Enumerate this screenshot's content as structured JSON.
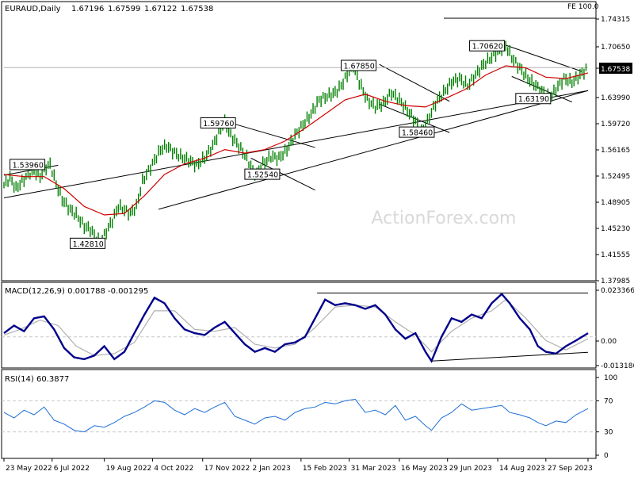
{
  "chart_data": {
    "type": "line",
    "symbol": "EURAUD,Daily",
    "ohlc": [
      "1.67196",
      "1.67599",
      "1.67122",
      "1.67538"
    ],
    "watermark": "ActionForex.com",
    "price_panel": {
      "ylim": [
        1.3798,
        1.755
      ],
      "y_ticks": [
        "1.74315",
        "1.70650",
        "1.67538",
        "1.63990",
        "1.59720",
        "1.56165",
        "1.52495",
        "1.48905",
        "1.45230",
        "1.41555",
        "1.37985"
      ],
      "current_price": "1.67538",
      "fib_label": "FE 100.0",
      "fib_level": 1.745,
      "price_series": [
        [
          0,
          1.51
        ],
        [
          3,
          1.52
        ],
        [
          6,
          1.505
        ],
        [
          9,
          1.515
        ],
        [
          12,
          1.525
        ],
        [
          15,
          1.53
        ],
        [
          18,
          1.522
        ],
        [
          21,
          1.535
        ],
        [
          23,
          1.539
        ],
        [
          26,
          1.512
        ],
        [
          29,
          1.49
        ],
        [
          33,
          1.475
        ],
        [
          36,
          1.468
        ],
        [
          40,
          1.452
        ],
        [
          43,
          1.448
        ],
        [
          46,
          1.435
        ],
        [
          48,
          1.428
        ],
        [
          51,
          1.445
        ],
        [
          54,
          1.46
        ],
        [
          57,
          1.48
        ],
        [
          60,
          1.475
        ],
        [
          63,
          1.47
        ],
        [
          66,
          1.48
        ],
        [
          69,
          1.515
        ],
        [
          72,
          1.53
        ],
        [
          75,
          1.545
        ],
        [
          78,
          1.56
        ],
        [
          81,
          1.565
        ],
        [
          84,
          1.558
        ],
        [
          88,
          1.55
        ],
        [
          92,
          1.545
        ],
        [
          96,
          1.538
        ],
        [
          100,
          1.548
        ],
        [
          104,
          1.565
        ],
        [
          108,
          1.59
        ],
        [
          110,
          1.5976
        ],
        [
          113,
          1.58
        ],
        [
          117,
          1.565
        ],
        [
          121,
          1.548
        ],
        [
          124,
          1.53
        ],
        [
          126,
          1.5254
        ],
        [
          129,
          1.54
        ],
        [
          133,
          1.55
        ],
        [
          137,
          1.548
        ],
        [
          141,
          1.56
        ],
        [
          145,
          1.58
        ],
        [
          149,
          1.595
        ],
        [
          153,
          1.61
        ],
        [
          157,
          1.63
        ],
        [
          161,
          1.635
        ],
        [
          165,
          1.64
        ],
        [
          168,
          1.65
        ],
        [
          171,
          1.665
        ],
        [
          174,
          1.6785
        ],
        [
          177,
          1.655
        ],
        [
          181,
          1.63
        ],
        [
          185,
          1.62
        ],
        [
          189,
          1.625
        ],
        [
          193,
          1.64
        ],
        [
          197,
          1.63
        ],
        [
          201,
          1.615
        ],
        [
          205,
          1.6
        ],
        [
          208,
          1.5846
        ],
        [
          211,
          1.6
        ],
        [
          215,
          1.625
        ],
        [
          219,
          1.64
        ],
        [
          223,
          1.655
        ],
        [
          227,
          1.66
        ],
        [
          231,
          1.65
        ],
        [
          235,
          1.665
        ],
        [
          239,
          1.68
        ],
        [
          243,
          1.69
        ],
        [
          247,
          1.7
        ],
        [
          250,
          1.7062
        ],
        [
          253,
          1.69
        ],
        [
          257,
          1.675
        ],
        [
          261,
          1.66
        ],
        [
          265,
          1.65
        ],
        [
          269,
          1.64
        ],
        [
          272,
          1.6319
        ],
        [
          275,
          1.645
        ],
        [
          279,
          1.66
        ],
        [
          283,
          1.655
        ],
        [
          287,
          1.665
        ],
        [
          291,
          1.675
        ]
      ],
      "ma_series": [
        [
          0,
          1.525
        ],
        [
          10,
          1.522
        ],
        [
          20,
          1.522
        ],
        [
          30,
          1.505
        ],
        [
          40,
          1.48
        ],
        [
          50,
          1.468
        ],
        [
          60,
          1.47
        ],
        [
          70,
          1.495
        ],
        [
          80,
          1.525
        ],
        [
          90,
          1.54
        ],
        [
          100,
          1.548
        ],
        [
          110,
          1.56
        ],
        [
          120,
          1.555
        ],
        [
          130,
          1.56
        ],
        [
          140,
          1.572
        ],
        [
          150,
          1.59
        ],
        [
          160,
          1.61
        ],
        [
          170,
          1.63
        ],
        [
          180,
          1.638
        ],
        [
          190,
          1.628
        ],
        [
          200,
          1.622
        ],
        [
          210,
          1.62
        ],
        [
          220,
          1.632
        ],
        [
          230,
          1.645
        ],
        [
          240,
          1.665
        ],
        [
          250,
          1.678
        ],
        [
          260,
          1.675
        ],
        [
          270,
          1.662
        ],
        [
          280,
          1.66
        ],
        [
          291,
          1.668
        ]
      ],
      "trendlines": [
        {
          "name": "lower-channel-line",
          "points": [
            [
              0,
              1.492
            ],
            [
              291,
              1.643
            ]
          ]
        },
        {
          "name": "lower-support-line",
          "points": [
            [
              77,
              1.476
            ],
            [
              291,
              1.643
            ]
          ]
        },
        {
          "name": "channel-upper-1",
          "points": [
            [
              110,
              1.6
            ],
            [
              155,
              1.563
            ]
          ]
        },
        {
          "name": "channel-lower-1",
          "points": [
            [
              123,
              1.548
            ],
            [
              155,
              1.503
            ]
          ]
        },
        {
          "name": "channel-upper-2",
          "points": [
            [
              187,
              1.68
            ],
            [
              222,
              1.628
            ]
          ]
        },
        {
          "name": "channel-lower-2",
          "points": [
            [
              187,
              1.624
            ],
            [
              222,
              1.584
            ]
          ]
        },
        {
          "name": "channel-upper-3",
          "points": [
            [
              250,
              1.707
            ],
            [
              288,
              1.67
            ]
          ]
        },
        {
          "name": "channel-lower-3",
          "points": [
            [
              253,
              1.663
            ],
            [
              283,
              1.627
            ]
          ]
        },
        {
          "name": "left-upper-line",
          "points": [
            [
              0,
              1.524
            ],
            [
              27,
              1.538
            ]
          ]
        },
        {
          "name": "right-cap-line",
          "points": [
            [
              0,
              1.6754
            ],
            [
              291,
              1.6754
            ]
          ]
        }
      ],
      "annotations": [
        {
          "label": "1.53960",
          "x": 3,
          "y": 1.539
        },
        {
          "label": "1.42810",
          "x": 33,
          "y": 1.428
        },
        {
          "label": "1.59760",
          "x": 98,
          "y": 1.5976
        },
        {
          "label": "1.52540",
          "x": 120,
          "y": 1.5254
        },
        {
          "label": "1.67850",
          "x": 168,
          "y": 1.6785
        },
        {
          "label": "1.58460",
          "x": 197,
          "y": 1.5846
        },
        {
          "label": "1.70620",
          "x": 232,
          "y": 1.7062
        },
        {
          "label": "1.63190",
          "x": 255,
          "y": 1.6319
        }
      ]
    },
    "macd_panel": {
      "label": "MACD(12,26,9) 0.001788 -0.001295",
      "ylim": [
        -0.015,
        0.025
      ],
      "y_ticks": [
        "0.023366",
        "0.00",
        "0.00",
        "-0.013186"
      ],
      "macd_series": [
        [
          0,
          0.002
        ],
        [
          5,
          0.006
        ],
        [
          10,
          0.003
        ],
        [
          15,
          0.01
        ],
        [
          20,
          0.011
        ],
        [
          25,
          0.004
        ],
        [
          30,
          -0.006
        ],
        [
          35,
          -0.011
        ],
        [
          40,
          -0.012
        ],
        [
          45,
          -0.01
        ],
        [
          50,
          -0.005
        ],
        [
          55,
          -0.012
        ],
        [
          60,
          -0.008
        ],
        [
          65,
          0.002
        ],
        [
          70,
          0.012
        ],
        [
          75,
          0.021
        ],
        [
          80,
          0.018
        ],
        [
          85,
          0.01
        ],
        [
          90,
          0.004
        ],
        [
          95,
          0.002
        ],
        [
          100,
          0.001
        ],
        [
          105,
          0.005
        ],
        [
          110,
          0.008
        ],
        [
          115,
          0.002
        ],
        [
          120,
          -0.004
        ],
        [
          125,
          -0.008
        ],
        [
          130,
          -0.006
        ],
        [
          135,
          -0.008
        ],
        [
          140,
          -0.004
        ],
        [
          145,
          -0.003
        ],
        [
          150,
          0.0
        ],
        [
          155,
          0.01
        ],
        [
          160,
          0.02
        ],
        [
          165,
          0.017
        ],
        [
          170,
          0.018
        ],
        [
          175,
          0.017
        ],
        [
          180,
          0.015
        ],
        [
          185,
          0.017
        ],
        [
          190,
          0.012
        ],
        [
          195,
          0.004
        ],
        [
          200,
          -0.001
        ],
        [
          205,
          0.002
        ],
        [
          210,
          -0.008
        ],
        [
          213,
          -0.013
        ],
        [
          218,
          0.0
        ],
        [
          223,
          0.01
        ],
        [
          228,
          0.008
        ],
        [
          233,
          0.012
        ],
        [
          238,
          0.01
        ],
        [
          243,
          0.018
        ],
        [
          248,
          0.023
        ],
        [
          252,
          0.018
        ],
        [
          257,
          0.01
        ],
        [
          262,
          0.004
        ],
        [
          266,
          -0.005
        ],
        [
          270,
          -0.008
        ],
        [
          275,
          -0.009
        ],
        [
          280,
          -0.005
        ],
        [
          285,
          -0.002
        ],
        [
          291,
          0.002
        ]
      ],
      "signal_series": [
        [
          0,
          0.001
        ],
        [
          8,
          0.004
        ],
        [
          18,
          0.009
        ],
        [
          27,
          0.006
        ],
        [
          36,
          -0.005
        ],
        [
          45,
          -0.01
        ],
        [
          55,
          -0.009
        ],
        [
          65,
          -0.003
        ],
        [
          75,
          0.014
        ],
        [
          85,
          0.014
        ],
        [
          95,
          0.004
        ],
        [
          105,
          0.003
        ],
        [
          115,
          0.005
        ],
        [
          125,
          -0.004
        ],
        [
          135,
          -0.006
        ],
        [
          145,
          -0.004
        ],
        [
          155,
          0.005
        ],
        [
          165,
          0.016
        ],
        [
          175,
          0.017
        ],
        [
          185,
          0.016
        ],
        [
          195,
          0.008
        ],
        [
          205,
          0.001
        ],
        [
          213,
          -0.008
        ],
        [
          223,
          0.003
        ],
        [
          233,
          0.01
        ],
        [
          243,
          0.014
        ],
        [
          250,
          0.02
        ],
        [
          260,
          0.01
        ],
        [
          270,
          -0.002
        ],
        [
          280,
          -0.007
        ],
        [
          291,
          -0.001
        ]
      ],
      "trendlines": [
        {
          "name": "macd-top-line",
          "points": [
            [
              156,
              0.0235
            ],
            [
              291,
              0.0235
            ]
          ]
        },
        {
          "name": "macd-bottom-line",
          "points": [
            [
              213,
              -0.013
            ],
            [
              291,
              -0.0083
            ]
          ]
        }
      ]
    },
    "rsi_panel": {
      "label": "RSI(14) 60.3877",
      "ylim": [
        0,
        100
      ],
      "y_ticks": [
        "100",
        "70",
        "30",
        "0"
      ],
      "rsi_series": [
        [
          0,
          55
        ],
        [
          5,
          48
        ],
        [
          10,
          58
        ],
        [
          15,
          52
        ],
        [
          20,
          62
        ],
        [
          25,
          45
        ],
        [
          30,
          40
        ],
        [
          35,
          32
        ],
        [
          40,
          30
        ],
        [
          45,
          38
        ],
        [
          50,
          36
        ],
        [
          55,
          42
        ],
        [
          60,
          50
        ],
        [
          65,
          55
        ],
        [
          70,
          62
        ],
        [
          75,
          70
        ],
        [
          80,
          68
        ],
        [
          85,
          58
        ],
        [
          90,
          52
        ],
        [
          95,
          60
        ],
        [
          100,
          55
        ],
        [
          105,
          62
        ],
        [
          110,
          68
        ],
        [
          115,
          50
        ],
        [
          120,
          45
        ],
        [
          125,
          40
        ],
        [
          130,
          48
        ],
        [
          135,
          50
        ],
        [
          140,
          45
        ],
        [
          145,
          55
        ],
        [
          150,
          60
        ],
        [
          155,
          62
        ],
        [
          160,
          68
        ],
        [
          165,
          66
        ],
        [
          170,
          70
        ],
        [
          175,
          72
        ],
        [
          180,
          55
        ],
        [
          185,
          58
        ],
        [
          190,
          52
        ],
        [
          195,
          64
        ],
        [
          200,
          45
        ],
        [
          205,
          50
        ],
        [
          210,
          38
        ],
        [
          213,
          32
        ],
        [
          218,
          48
        ],
        [
          223,
          55
        ],
        [
          228,
          66
        ],
        [
          233,
          58
        ],
        [
          238,
          60
        ],
        [
          243,
          62
        ],
        [
          248,
          64
        ],
        [
          252,
          55
        ],
        [
          257,
          52
        ],
        [
          262,
          48
        ],
        [
          266,
          42
        ],
        [
          270,
          38
        ],
        [
          275,
          44
        ],
        [
          280,
          42
        ],
        [
          285,
          52
        ],
        [
          291,
          60
        ]
      ]
    },
    "x_tick_labels": [
      {
        "label": "23 May 2022",
        "x": 0
      },
      {
        "label": "6 Jul 2022",
        "x": 24
      },
      {
        "label": "19 Aug 2022",
        "x": 50
      },
      {
        "label": "4 Oct 2022",
        "x": 74
      },
      {
        "label": "17 Nov 2022",
        "x": 99
      },
      {
        "label": "2 Jan 2023",
        "x": 123
      },
      {
        "label": "15 Feb 2023",
        "x": 148
      },
      {
        "label": "31 Mar 2023",
        "x": 172
      },
      {
        "label": "16 May 2023",
        "x": 197
      },
      {
        "label": "29 Jun 2023",
        "x": 221
      },
      {
        "label": "14 Aug 2023",
        "x": 246
      },
      {
        "label": "27 Sep 2023",
        "x": 270
      },
      {
        "label": "",
        "x": 291
      }
    ],
    "colors": {
      "price": "#008000",
      "ma": "#d00000",
      "macd": "#00008b",
      "signal": "#b0b0b0",
      "rsi": "#1e6fd9",
      "trend": "#000000",
      "grid": "#c8c8c8",
      "watermark": "#d9d9d9"
    }
  }
}
